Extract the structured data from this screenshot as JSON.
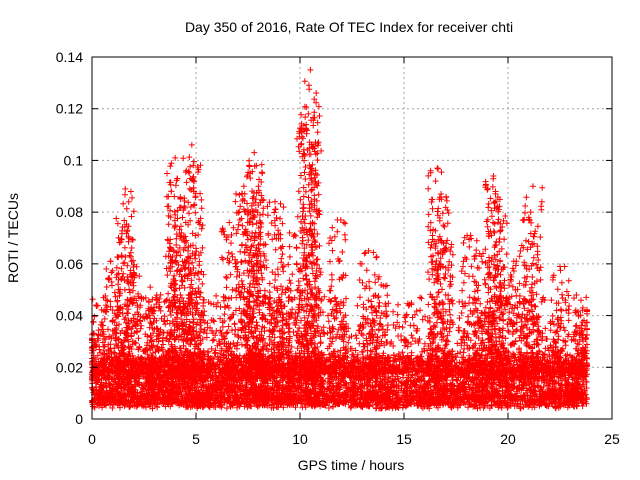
{
  "chart_data": {
    "type": "scatter",
    "title": "Day 350 of 2016, Rate Of TEC Index for receiver chti",
    "xlabel": "GPS time / hours",
    "ylabel": "ROTI / TECUs",
    "xlim": [
      0,
      25
    ],
    "ylim": [
      0,
      0.14
    ],
    "xticks": [
      0,
      5,
      10,
      15,
      20,
      25
    ],
    "xtick_labels": [
      "0",
      "5",
      "10",
      "15",
      "20",
      "25"
    ],
    "yticks": [
      0,
      0.02,
      0.04,
      0.06,
      0.08,
      0.1,
      0.12,
      0.14
    ],
    "ytick_labels": [
      "0",
      "0.02",
      "0.04",
      "0.06",
      "0.08",
      "0.1",
      "0.12",
      "0.14"
    ],
    "grid": true,
    "marker": "+",
    "color": "#ff0000",
    "x_coverage_hours": [
      0,
      23.8
    ],
    "baseline_band": [
      0.004,
      0.022
    ],
    "series": [
      {
        "name": "ROTI",
        "note": "dense point cloud; representative peak values listed",
        "x": [
          0.1,
          0.9,
          1.6,
          1.7,
          1.9,
          2.8,
          3.3,
          4.0,
          4.1,
          4.3,
          4.8,
          4.9,
          5.0,
          6.6,
          7.3,
          7.6,
          7.8,
          7.9,
          8.1,
          8.8,
          9.1,
          9.5,
          10.3,
          10.4,
          10.5,
          10.6,
          11.8,
          13.3,
          13.8,
          16.6,
          16.7,
          16.9,
          18.2,
          18.8,
          19.3,
          19.4,
          19.5,
          20.4,
          21.0,
          21.2,
          22.5,
          23.6
        ],
        "y": [
          0.033,
          0.061,
          0.089,
          0.073,
          0.061,
          0.051,
          0.048,
          0.101,
          0.093,
          0.072,
          0.106,
          0.088,
          0.066,
          0.076,
          0.09,
          0.095,
          0.103,
          0.098,
          0.076,
          0.084,
          0.066,
          0.072,
          0.112,
          0.118,
          0.135,
          0.105,
          0.077,
          0.065,
          0.055,
          0.097,
          0.085,
          0.068,
          0.071,
          0.064,
          0.094,
          0.088,
          0.082,
          0.061,
          0.078,
          0.09,
          0.059,
          0.043
        ]
      }
    ]
  }
}
